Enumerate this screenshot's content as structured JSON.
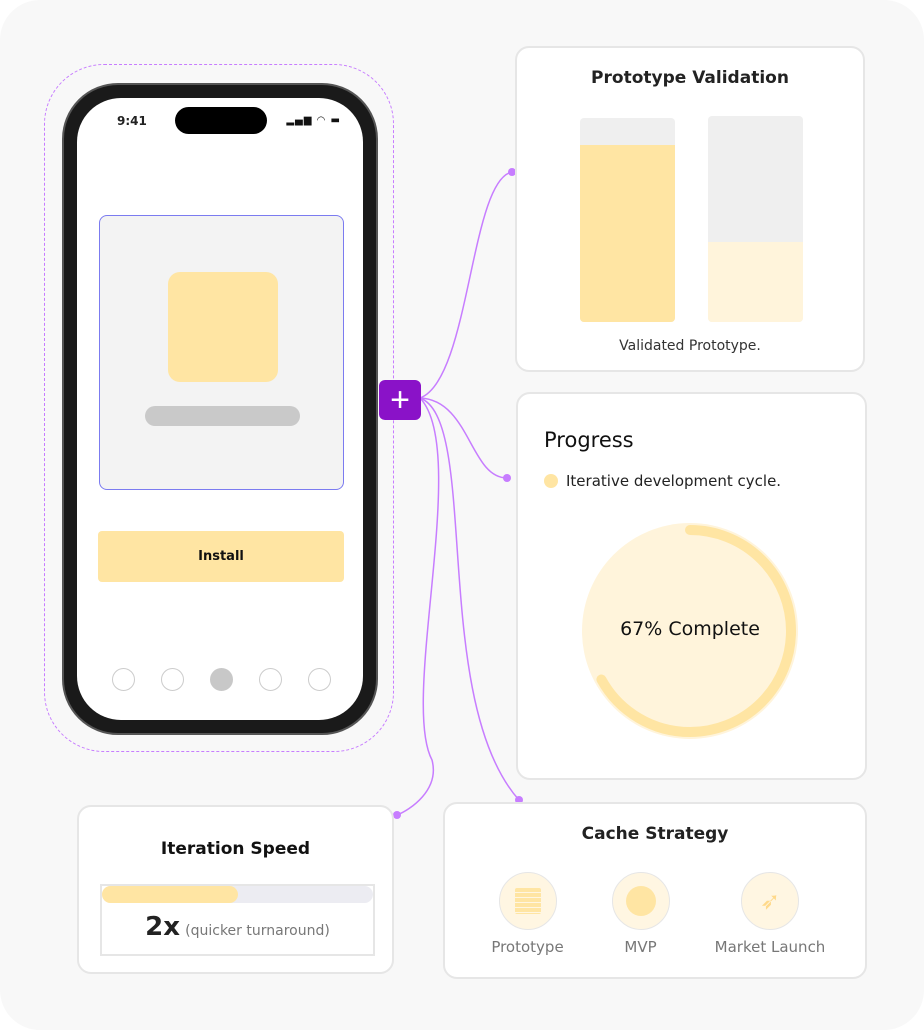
{
  "phone": {
    "time": "9:41",
    "status_icons": [
      "signal-icon",
      "wifi-icon",
      "battery-icon"
    ],
    "install_label": "Install",
    "page_dots": 5,
    "active_dot": 2
  },
  "add_button": {
    "label": "+"
  },
  "validation": {
    "title": "Prototype Validation",
    "caption": "Validated Prototype.",
    "bars": [
      0.87,
      0.39
    ]
  },
  "progress": {
    "title": "Progress",
    "legend": "Iterative development cycle.",
    "percent": 67,
    "label": "67% Complete"
  },
  "speed": {
    "title": "Iteration Speed",
    "fill": 0.5,
    "value": "2x",
    "note": "(quicker turnaround)"
  },
  "cache": {
    "title": "Cache Strategy",
    "items": [
      {
        "label": "Prototype",
        "icon": "list-icon"
      },
      {
        "label": "MVP",
        "icon": "clock-icon"
      },
      {
        "label": "Market Launch",
        "icon": "rocket-icon"
      }
    ]
  },
  "colors": {
    "accent": "#8a12c8",
    "connector": "#c77dff",
    "yellow": "#ffe5a3",
    "light_yellow": "#fff4db"
  }
}
